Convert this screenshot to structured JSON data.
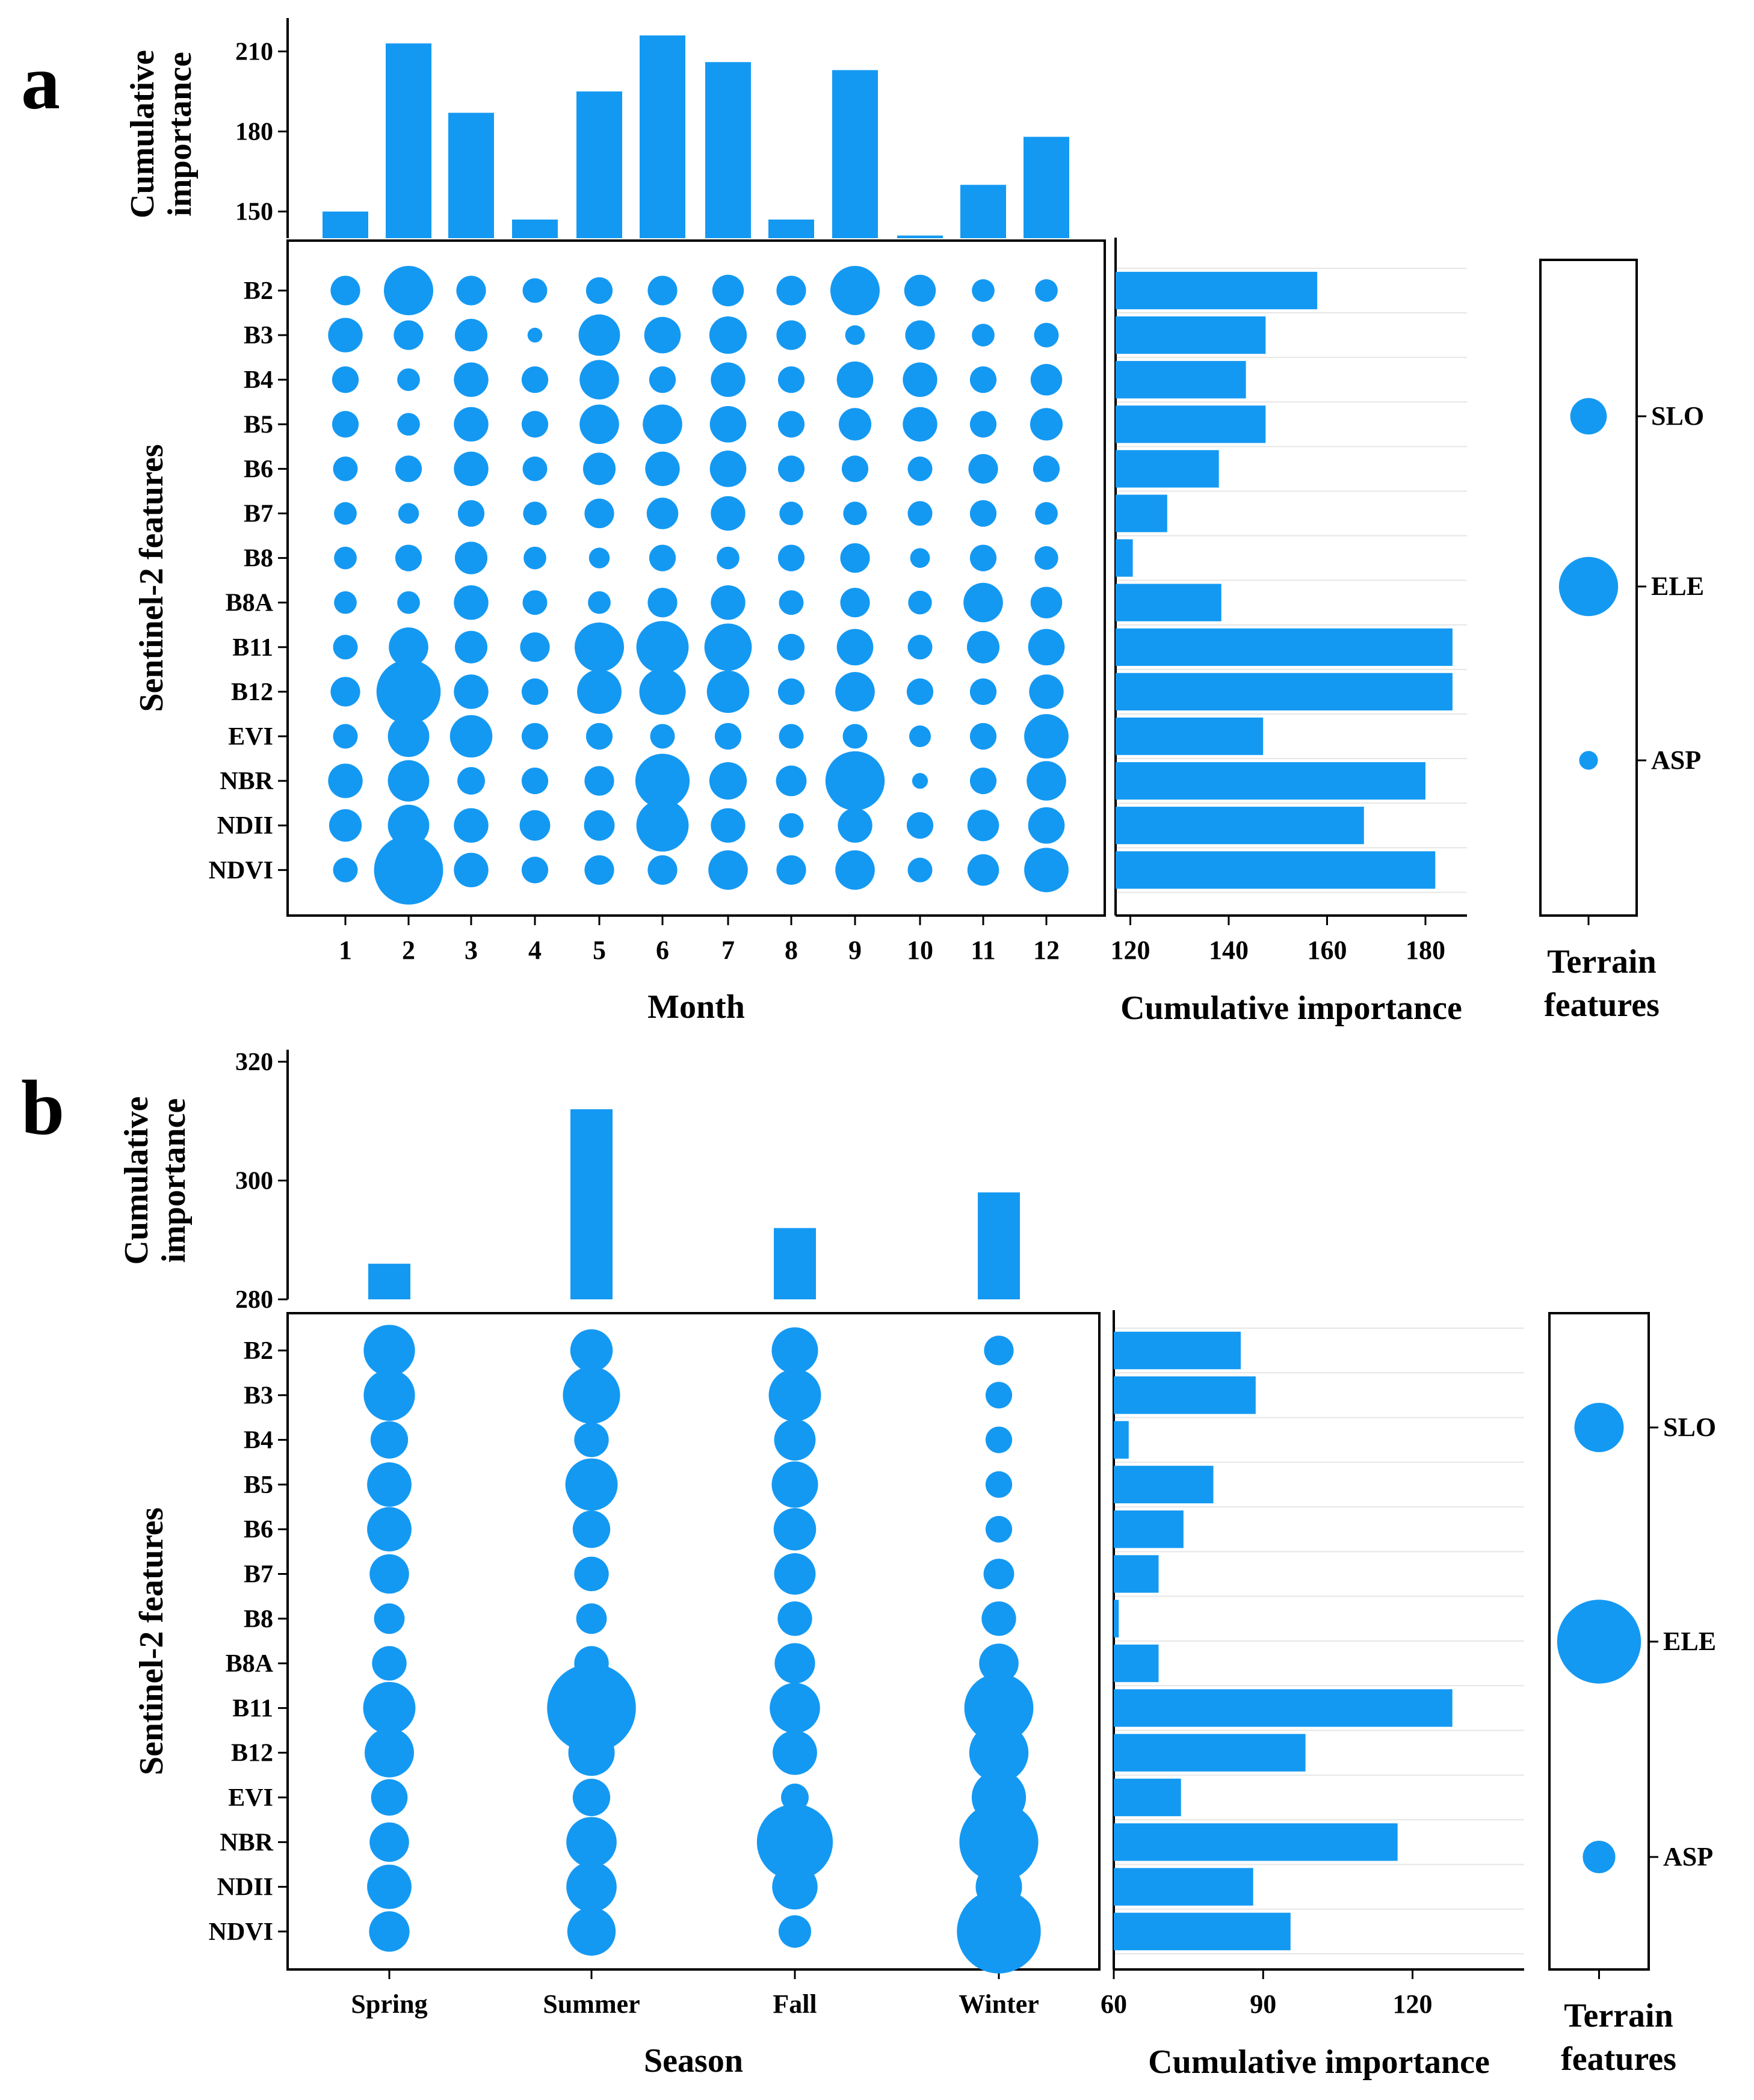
{
  "chart_data": [
    {
      "panel_label": "a",
      "type": "bubble-matrix",
      "x_categories": [
        "1",
        "2",
        "3",
        "4",
        "5",
        "6",
        "7",
        "8",
        "9",
        "10",
        "11",
        "12"
      ],
      "y_categories": [
        "B2",
        "B3",
        "B4",
        "B5",
        "B6",
        "B7",
        "B8",
        "B8A",
        "B11",
        "B12",
        "EVI",
        "NBR",
        "NDII",
        "NDVI"
      ],
      "bubble_sizes": [
        [
          3,
          5,
          3,
          2.5,
          2.7,
          3,
          3.2,
          3,
          5,
          3.2,
          2.3,
          2.3
        ],
        [
          3.5,
          3,
          3.3,
          1.5,
          4.2,
          3.7,
          3.8,
          3,
          2,
          3,
          2.3,
          2.5
        ],
        [
          2.7,
          2.3,
          3.5,
          2.7,
          4,
          2.7,
          3.5,
          2.7,
          3.7,
          3.5,
          2.7,
          3.2
        ],
        [
          2.7,
          2.3,
          3.5,
          2.7,
          4,
          4,
          3.7,
          2.7,
          3.3,
          3.5,
          2.7,
          3.3
        ],
        [
          2.5,
          2.7,
          3.5,
          2.5,
          3.3,
          3.5,
          3.7,
          2.7,
          2.7,
          2.5,
          3,
          2.7
        ],
        [
          2.3,
          2.1,
          2.7,
          2.4,
          3,
          3.2,
          3.5,
          2.4,
          2.4,
          2.5,
          2.7,
          2.3
        ],
        [
          2.3,
          2.7,
          3.3,
          2.3,
          2.1,
          2.7,
          2.3,
          2.7,
          3,
          2,
          2.7,
          2.4
        ],
        [
          2.3,
          2.3,
          3.5,
          2.5,
          2.3,
          3,
          3.5,
          2.5,
          3,
          2.4,
          4,
          3.2
        ],
        [
          2.5,
          4,
          3.3,
          3,
          5,
          5.3,
          4.8,
          2.7,
          3.7,
          2.5,
          3.3,
          3.7
        ],
        [
          3,
          6.5,
          3.5,
          2.7,
          4.5,
          4.7,
          4.3,
          2.7,
          4,
          2.7,
          2.7,
          3.5
        ],
        [
          2.5,
          4.2,
          4.3,
          2.7,
          2.7,
          2.5,
          2.7,
          2.5,
          2.5,
          2.2,
          2.7,
          4.5
        ],
        [
          3.5,
          4.2,
          2.8,
          2.7,
          3,
          5.5,
          3.8,
          3.1,
          6,
          1.6,
          2.7,
          4
        ],
        [
          3.3,
          4.2,
          3.5,
          3.1,
          3.1,
          5.3,
          3.5,
          2.5,
          3.5,
          2.7,
          3.2,
          3.7
        ],
        [
          2.5,
          7,
          3.5,
          2.7,
          3,
          3,
          4,
          3,
          4,
          2.5,
          3.2,
          4.5
        ]
      ],
      "top_bars": {
        "ylabel": "Cumulative\nimportance",
        "yticks": [
          150,
          180,
          210
        ],
        "ylim": [
          140,
          218
        ],
        "values": [
          150,
          213,
          187,
          147,
          195,
          216,
          206,
          147,
          203,
          141,
          160,
          178
        ]
      },
      "right_bars": {
        "xlabel": "Cumulative importance",
        "xticks": [
          120,
          140,
          160,
          180
        ],
        "xlim": [
          117,
          186
        ],
        "values": [
          158,
          147.5,
          143.5,
          147.5,
          138,
          127.5,
          120.5,
          138.5,
          185.5,
          185.5,
          147,
          180,
          167.5,
          182
        ]
      },
      "xlabel": "Month",
      "ylabel": "Sentinel-2 features",
      "terrain": {
        "title": "Terrain\nfeatures",
        "labels": [
          "SLO",
          "ELE",
          "ASP"
        ],
        "sizes": [
          3.7,
          6,
          1.9
        ]
      }
    },
    {
      "panel_label": "b",
      "type": "bubble-matrix",
      "x_categories": [
        "Spring",
        "Summer",
        "Fall",
        "Winter"
      ],
      "y_categories": [
        "B2",
        "B3",
        "B4",
        "B5",
        "B6",
        "B7",
        "B8",
        "B8A",
        "B11",
        "B12",
        "EVI",
        "NBR",
        "NDII",
        "NDVI"
      ],
      "bubble_sizes": [
        [
          5.2,
          4.3,
          4.7,
          3
        ],
        [
          5.2,
          5.8,
          5.3,
          2.7
        ],
        [
          3.8,
          3.5,
          4.2,
          2.7
        ],
        [
          4.5,
          5.3,
          4.7,
          2.7
        ],
        [
          4.5,
          3.8,
          4.3,
          2.7
        ],
        [
          4,
          3.5,
          4.2,
          3.1
        ],
        [
          3.1,
          3.1,
          3.5,
          3.5
        ],
        [
          3.5,
          3.5,
          4.1,
          4
        ],
        [
          5.3,
          9,
          5.1,
          7
        ],
        [
          5,
          4.7,
          4.5,
          6
        ],
        [
          3.7,
          3.8,
          2.8,
          5.5
        ],
        [
          4,
          5.1,
          7.7,
          8
        ],
        [
          4.5,
          5.1,
          4.6,
          4.7
        ],
        [
          4.1,
          4.9,
          3.3,
          8.5
        ]
      ],
      "top_bars": {
        "ylabel": "Cumulative\nimportance",
        "yticks": [
          280,
          300,
          320
        ],
        "ylim": [
          280,
          320
        ],
        "values": [
          286,
          312,
          292,
          298
        ]
      },
      "right_bars": {
        "xlabel": "Cumulative importance",
        "xticks": [
          60,
          90,
          120
        ],
        "xlim": [
          60,
          140
        ],
        "values": [
          85.5,
          88.5,
          63,
          80,
          74,
          69,
          61,
          69,
          128,
          98.5,
          73.5,
          117,
          88,
          95.5
        ]
      },
      "xlabel": "Season",
      "ylabel": "Sentinel-2 features",
      "terrain": {
        "title": "Terrain\nfeatures",
        "labels": [
          "SLO",
          "ELE",
          "ASP"
        ],
        "sizes": [
          5,
          8.5,
          3.3
        ]
      }
    }
  ],
  "colors": {
    "bar": "#1499f2",
    "dot": "#1499f2",
    "axis": "#000000",
    "grid": "#e6e6e6"
  },
  "meta": {}
}
